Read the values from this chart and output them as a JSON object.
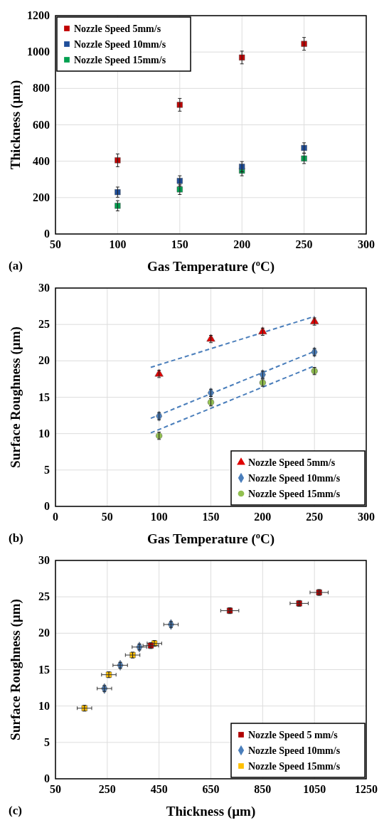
{
  "chart_data": [
    {
      "type": "scatter",
      "xlabel": "Gas Temperature ($^{o}$C)",
      "ylabel": "Thickness (µm)",
      "x": [
        100,
        150,
        200,
        250
      ],
      "xlim": [
        50,
        300
      ],
      "xticks": [
        50,
        100,
        150,
        200,
        250,
        300
      ],
      "ylim": [
        0,
        1200
      ],
      "yticks": [
        0,
        200,
        400,
        600,
        800,
        1000,
        1200
      ],
      "grid": true,
      "legend": "top left",
      "marker": "square",
      "annotations": [
        "(a)"
      ],
      "series": [
        {
          "name": "Nozzle Speed 5mm/s",
          "color": "#c00000",
          "values": [
            405,
            710,
            970,
            1045
          ],
          "errors": [
            35,
            35,
            35,
            35
          ]
        },
        {
          "name": "Nozzle Speed 10mm/s",
          "color": "#1f4e9a",
          "values": [
            230,
            292,
            370,
            473
          ],
          "errors": [
            28,
            28,
            28,
            28
          ]
        },
        {
          "name": "Nozzle Speed 15mm/s",
          "color": "#00a050",
          "values": [
            155,
            245,
            348,
            415
          ],
          "errors": [
            28,
            28,
            28,
            28
          ]
        }
      ]
    },
    {
      "type": "scatter",
      "xlabel": "Gas Temperature ($^{o}$C)",
      "ylabel": "Surface Roughness (µm)",
      "x": [
        100,
        150,
        200,
        250
      ],
      "xlim": [
        0,
        300
      ],
      "xticks": [
        0,
        50,
        100,
        150,
        200,
        250,
        300
      ],
      "ylim": [
        0,
        30
      ],
      "yticks": [
        0,
        5,
        10,
        15,
        20,
        25,
        30
      ],
      "grid": true,
      "legend": "bottom right",
      "annotations": [
        "(b)"
      ],
      "series": [
        {
          "name": "Nozzle Speed 5mm/s",
          "color": "#e00000",
          "marker": "triangle",
          "values": [
            18.2,
            23.0,
            24.0,
            25.4
          ],
          "errors": [
            0.5,
            0.5,
            0.5,
            0.5
          ]
        },
        {
          "name": "Nozzle Speed 10mm/s",
          "color": "#4a7ebb",
          "marker": "diamond",
          "values": [
            12.4,
            15.6,
            18.1,
            21.2
          ],
          "errors": [
            0.5,
            0.5,
            0.5,
            0.5
          ]
        },
        {
          "name": "Nozzle Speed 15mm/s",
          "color": "#92c050",
          "marker": "circle",
          "values": [
            9.7,
            14.3,
            17.0,
            18.6
          ],
          "errors": [
            0.5,
            0.5,
            0.5,
            0.5
          ]
        },
        {
          "type": "line",
          "color": "#4a7ebb",
          "line_style": "dashed",
          "x": [
            92,
            250
          ],
          "values": [
            19.1,
            26.1
          ]
        },
        {
          "type": "line",
          "color": "#4a7ebb",
          "line_style": "dashed",
          "x": [
            92,
            250
          ],
          "values": [
            12.1,
            21.3
          ]
        },
        {
          "type": "line",
          "color": "#4a7ebb",
          "line_style": "dashed",
          "x": [
            92,
            250
          ],
          "values": [
            10.1,
            19.3
          ]
        }
      ]
    },
    {
      "type": "scatter",
      "xlabel": "Thickness (µm)",
      "ylabel": "Surface Roughness (µm)",
      "xlim": [
        50,
        1250
      ],
      "xticks": [
        50,
        250,
        450,
        650,
        850,
        1050,
        1250
      ],
      "ylim": [
        0,
        30
      ],
      "yticks": [
        0,
        5,
        10,
        15,
        20,
        25,
        30
      ],
      "grid": true,
      "legend": "bottom right",
      "annotations": [
        "(c)"
      ],
      "series": [
        {
          "name": "Nozzle Speed 5 mm/s",
          "color": "#b00000",
          "marker": "square",
          "x": [
            418,
            723,
            991,
            1068
          ],
          "values": [
            18.3,
            23.1,
            24.1,
            25.6
          ],
          "errors": [
            0.4,
            0.4,
            0.4,
            0.4
          ],
          "xerrors": [
            30,
            35,
            35,
            35
          ]
        },
        {
          "name": "Nozzle Speed 10mm/s",
          "color": "#4a7ebb",
          "marker": "diamond",
          "x": [
            239,
            300,
            374,
            496
          ],
          "values": [
            12.4,
            15.6,
            18.1,
            21.2
          ],
          "errors": [
            0.4,
            0.4,
            0.4,
            0.4
          ],
          "xerrors": [
            28,
            28,
            28,
            28
          ]
        },
        {
          "name": "Nozzle Speed 15mm/s",
          "color": "#ffc000",
          "marker": "square",
          "x": [
            162,
            256,
            348,
            432
          ],
          "values": [
            9.7,
            14.3,
            17.0,
            18.6
          ],
          "errors": [
            0.4,
            0.4,
            0.4,
            0.4
          ],
          "xerrors": [
            28,
            28,
            28,
            28
          ]
        }
      ]
    }
  ]
}
